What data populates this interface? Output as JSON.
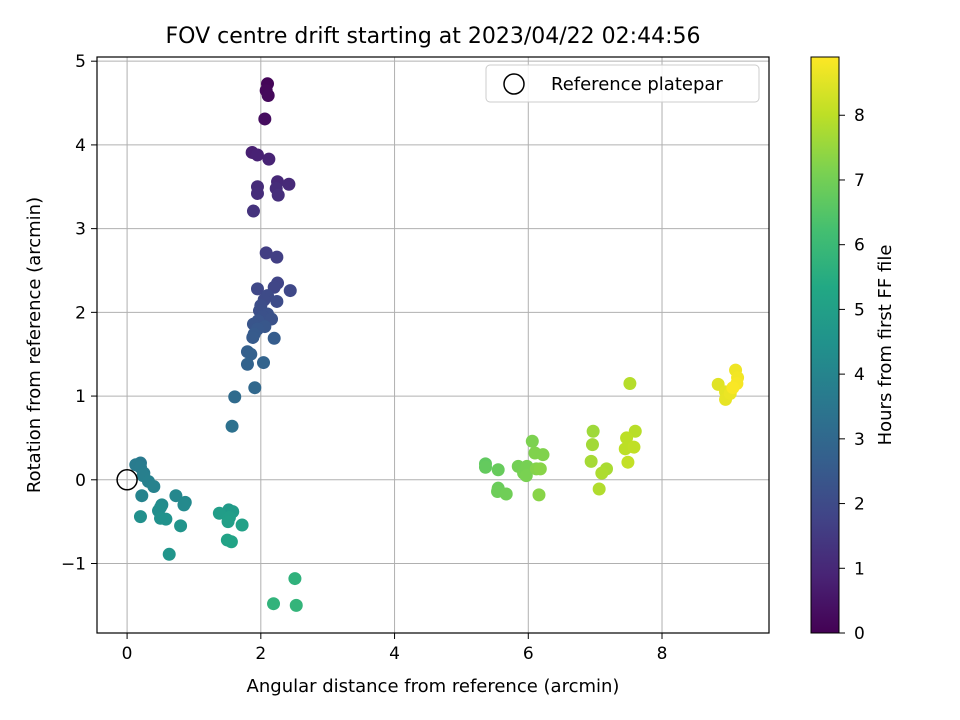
{
  "chart_data": {
    "type": "scatter",
    "title": "FOV centre drift starting at 2023/04/22 02:44:56",
    "xlabel": "Angular distance from reference (arcmin)",
    "ylabel": "Rotation from reference (arcmin)",
    "xlim": [
      -0.45,
      9.6
    ],
    "ylim": [
      -1.83,
      5.05
    ],
    "xticks": [
      0,
      2,
      4,
      6,
      8
    ],
    "yticks": [
      -1,
      0,
      1,
      2,
      3,
      4,
      5
    ],
    "xtick_labels": [
      "0",
      "2",
      "4",
      "6",
      "8"
    ],
    "ytick_labels": [
      "−1",
      "0",
      "1",
      "2",
      "3",
      "4",
      "5"
    ],
    "grid": true,
    "legend": {
      "position": "top-right",
      "entries": [
        "Reference platepar"
      ]
    },
    "reference_point": {
      "x": 0,
      "y": 0,
      "label": "Reference platepar"
    },
    "colorbar": {
      "label": "Hours from first FF file",
      "colormap": "viridis",
      "range": [
        0,
        8.9
      ],
      "ticks": [
        0,
        1,
        2,
        3,
        4,
        5,
        6,
        7,
        8
      ],
      "tick_labels": [
        "0",
        "1",
        "2",
        "3",
        "4",
        "5",
        "6",
        "7",
        "8"
      ]
    },
    "points": [
      {
        "x": 2.1,
        "y": 4.73,
        "c": 0.1
      },
      {
        "x": 2.08,
        "y": 4.65,
        "c": 0.15
      },
      {
        "x": 2.11,
        "y": 4.59,
        "c": 0.2
      },
      {
        "x": 2.06,
        "y": 4.31,
        "c": 0.3
      },
      {
        "x": 1.87,
        "y": 3.91,
        "c": 0.8
      },
      {
        "x": 1.95,
        "y": 3.88,
        "c": 0.85
      },
      {
        "x": 2.12,
        "y": 3.83,
        "c": 0.9
      },
      {
        "x": 2.25,
        "y": 3.56,
        "c": 1.0
      },
      {
        "x": 2.42,
        "y": 3.53,
        "c": 1.05
      },
      {
        "x": 1.95,
        "y": 3.5,
        "c": 1.1
      },
      {
        "x": 2.23,
        "y": 3.48,
        "c": 1.1
      },
      {
        "x": 1.95,
        "y": 3.42,
        "c": 1.15
      },
      {
        "x": 2.26,
        "y": 3.4,
        "c": 1.2
      },
      {
        "x": 1.89,
        "y": 3.21,
        "c": 1.3
      },
      {
        "x": 2.08,
        "y": 2.71,
        "c": 1.6
      },
      {
        "x": 2.24,
        "y": 2.66,
        "c": 1.65
      },
      {
        "x": 2.25,
        "y": 2.35,
        "c": 1.8
      },
      {
        "x": 2.2,
        "y": 2.3,
        "c": 1.85
      },
      {
        "x": 1.95,
        "y": 2.28,
        "c": 1.9
      },
      {
        "x": 2.44,
        "y": 2.26,
        "c": 1.9
      },
      {
        "x": 2.1,
        "y": 2.2,
        "c": 2.0
      },
      {
        "x": 2.05,
        "y": 2.15,
        "c": 2.0
      },
      {
        "x": 2.24,
        "y": 2.13,
        "c": 2.05
      },
      {
        "x": 2.0,
        "y": 2.08,
        "c": 2.1
      },
      {
        "x": 1.98,
        "y": 2.02,
        "c": 2.15
      },
      {
        "x": 2.1,
        "y": 1.98,
        "c": 2.2
      },
      {
        "x": 2.03,
        "y": 1.95,
        "c": 2.2
      },
      {
        "x": 2.16,
        "y": 1.92,
        "c": 2.25
      },
      {
        "x": 1.96,
        "y": 1.9,
        "c": 2.3
      },
      {
        "x": 1.89,
        "y": 1.86,
        "c": 2.35
      },
      {
        "x": 2.06,
        "y": 1.83,
        "c": 2.4
      },
      {
        "x": 1.95,
        "y": 1.8,
        "c": 2.45
      },
      {
        "x": 1.9,
        "y": 1.74,
        "c": 2.5
      },
      {
        "x": 1.88,
        "y": 1.7,
        "c": 2.55
      },
      {
        "x": 2.2,
        "y": 1.69,
        "c": 2.6
      },
      {
        "x": 1.8,
        "y": 1.53,
        "c": 2.7
      },
      {
        "x": 1.85,
        "y": 1.5,
        "c": 2.75
      },
      {
        "x": 1.8,
        "y": 1.38,
        "c": 2.8
      },
      {
        "x": 2.04,
        "y": 1.4,
        "c": 2.85
      },
      {
        "x": 1.91,
        "y": 1.1,
        "c": 3.0
      },
      {
        "x": 1.61,
        "y": 0.99,
        "c": 3.1
      },
      {
        "x": 1.57,
        "y": 0.64,
        "c": 3.3
      },
      {
        "x": 0.2,
        "y": 0.2,
        "c": 3.6
      },
      {
        "x": 0.13,
        "y": 0.18,
        "c": 3.65
      },
      {
        "x": 0.2,
        "y": 0.15,
        "c": 3.7
      },
      {
        "x": 0.25,
        "y": 0.08,
        "c": 3.75
      },
      {
        "x": 0.24,
        "y": 0.05,
        "c": 3.8
      },
      {
        "x": 0.32,
        "y": -0.02,
        "c": 3.85
      },
      {
        "x": 0.4,
        "y": -0.08,
        "c": 3.9
      },
      {
        "x": 0.22,
        "y": -0.19,
        "c": 3.95
      },
      {
        "x": 0.73,
        "y": -0.19,
        "c": 4.1
      },
      {
        "x": 0.87,
        "y": -0.27,
        "c": 4.15
      },
      {
        "x": 0.85,
        "y": -0.3,
        "c": 4.2
      },
      {
        "x": 0.52,
        "y": -0.3,
        "c": 4.25
      },
      {
        "x": 0.5,
        "y": -0.33,
        "c": 4.3
      },
      {
        "x": 0.47,
        "y": -0.37,
        "c": 4.35
      },
      {
        "x": 0.2,
        "y": -0.44,
        "c": 4.4
      },
      {
        "x": 0.5,
        "y": -0.46,
        "c": 4.45
      },
      {
        "x": 0.58,
        "y": -0.47,
        "c": 4.5
      },
      {
        "x": 0.8,
        "y": -0.55,
        "c": 4.55
      },
      {
        "x": 0.63,
        "y": -0.89,
        "c": 4.6
      },
      {
        "x": 1.52,
        "y": -0.36,
        "c": 4.8
      },
      {
        "x": 1.58,
        "y": -0.38,
        "c": 4.85
      },
      {
        "x": 1.38,
        "y": -0.4,
        "c": 4.9
      },
      {
        "x": 1.53,
        "y": -0.45,
        "c": 4.95
      },
      {
        "x": 1.51,
        "y": -0.5,
        "c": 5.0
      },
      {
        "x": 1.72,
        "y": -0.54,
        "c": 5.05
      },
      {
        "x": 1.5,
        "y": -0.72,
        "c": 5.1
      },
      {
        "x": 1.56,
        "y": -0.74,
        "c": 5.15
      },
      {
        "x": 2.51,
        "y": -1.18,
        "c": 5.7
      },
      {
        "x": 2.19,
        "y": -1.48,
        "c": 5.75
      },
      {
        "x": 2.53,
        "y": -1.5,
        "c": 5.8
      },
      {
        "x": 5.36,
        "y": 0.19,
        "c": 6.7
      },
      {
        "x": 5.36,
        "y": 0.15,
        "c": 6.75
      },
      {
        "x": 5.55,
        "y": 0.12,
        "c": 6.8
      },
      {
        "x": 5.55,
        "y": -0.1,
        "c": 6.85
      },
      {
        "x": 5.54,
        "y": -0.14,
        "c": 6.9
      },
      {
        "x": 5.67,
        "y": -0.17,
        "c": 6.95
      },
      {
        "x": 5.85,
        "y": 0.16,
        "c": 7.0
      },
      {
        "x": 5.98,
        "y": 0.16,
        "c": 7.05
      },
      {
        "x": 5.93,
        "y": 0.08,
        "c": 7.05
      },
      {
        "x": 5.97,
        "y": 0.05,
        "c": 7.1
      },
      {
        "x": 6.06,
        "y": 0.46,
        "c": 7.15
      },
      {
        "x": 6.1,
        "y": 0.32,
        "c": 7.2
      },
      {
        "x": 6.22,
        "y": 0.3,
        "c": 7.2
      },
      {
        "x": 6.12,
        "y": 0.13,
        "c": 7.25
      },
      {
        "x": 6.18,
        "y": 0.13,
        "c": 7.3
      },
      {
        "x": 6.16,
        "y": -0.18,
        "c": 7.3
      },
      {
        "x": 6.97,
        "y": 0.58,
        "c": 7.6
      },
      {
        "x": 6.96,
        "y": 0.42,
        "c": 7.65
      },
      {
        "x": 6.94,
        "y": 0.22,
        "c": 7.7
      },
      {
        "x": 7.17,
        "y": 0.13,
        "c": 7.75
      },
      {
        "x": 7.1,
        "y": 0.08,
        "c": 7.8
      },
      {
        "x": 7.06,
        "y": -0.11,
        "c": 7.85
      },
      {
        "x": 7.52,
        "y": 1.15,
        "c": 7.9
      },
      {
        "x": 7.6,
        "y": 0.58,
        "c": 7.95
      },
      {
        "x": 7.47,
        "y": 0.5,
        "c": 8.0
      },
      {
        "x": 7.45,
        "y": 0.37,
        "c": 8.0
      },
      {
        "x": 7.58,
        "y": 0.39,
        "c": 8.05
      },
      {
        "x": 7.49,
        "y": 0.21,
        "c": 8.1
      },
      {
        "x": 8.84,
        "y": 1.14,
        "c": 8.5
      },
      {
        "x": 8.95,
        "y": 1.05,
        "c": 8.55
      },
      {
        "x": 8.95,
        "y": 0.96,
        "c": 8.6
      },
      {
        "x": 9.02,
        "y": 1.03,
        "c": 8.65
      },
      {
        "x": 9.1,
        "y": 1.31,
        "c": 8.7
      },
      {
        "x": 9.13,
        "y": 1.22,
        "c": 8.75
      },
      {
        "x": 9.12,
        "y": 1.15,
        "c": 8.8
      },
      {
        "x": 9.06,
        "y": 1.1,
        "c": 8.85
      }
    ]
  }
}
